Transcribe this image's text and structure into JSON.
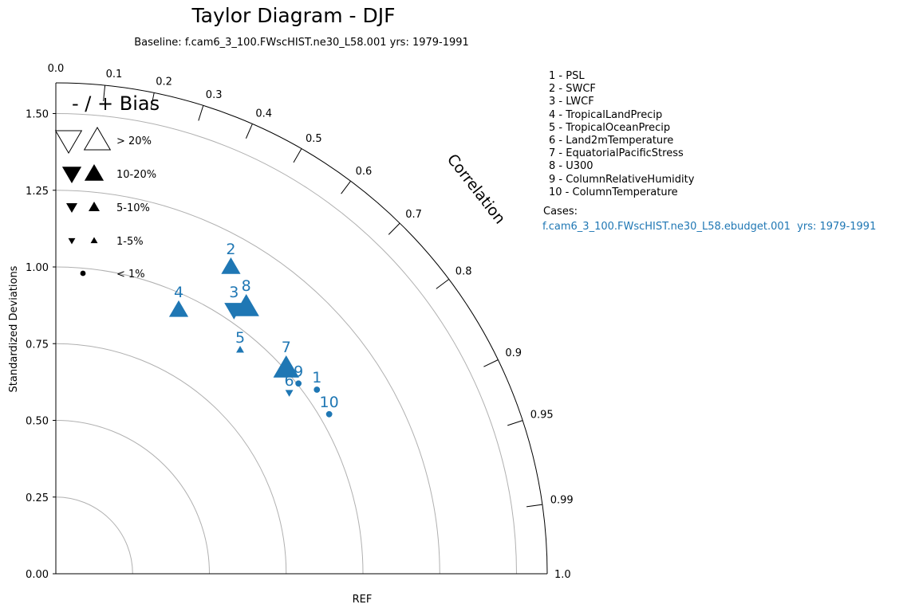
{
  "title": "Taylor Diagram - DJF",
  "subtitle": "Baseline: f.cam6_3_100.FWscHIST.ne30_L58.001  yrs: 1979-1991",
  "chart_data": {
    "type": "scatter",
    "diagram": "taylor",
    "title": "Taylor Diagram - DJF",
    "ylabel": "Standardized Deviations",
    "xlabel": "REF",
    "arc_label": "Correlation",
    "ylim": [
      0,
      1.6
    ],
    "yticks": [
      "0.00",
      "0.25",
      "0.50",
      "0.75",
      "1.00",
      "1.25",
      "1.50"
    ],
    "correlation_ticks": [
      {
        "value": 0.0,
        "label": "0.0"
      },
      {
        "value": 0.1,
        "label": "0.1"
      },
      {
        "value": 0.2,
        "label": "0.2"
      },
      {
        "value": 0.3,
        "label": "0.3"
      },
      {
        "value": 0.4,
        "label": "0.4"
      },
      {
        "value": 0.5,
        "label": "0.5"
      },
      {
        "value": 0.6,
        "label": "0.6"
      },
      {
        "value": 0.7,
        "label": "0.7"
      },
      {
        "value": 0.8,
        "label": "0.8"
      },
      {
        "value": 0.9,
        "label": "0.9"
      },
      {
        "value": 0.95,
        "label": "0.95"
      },
      {
        "value": 0.99,
        "label": "0.99"
      },
      {
        "value": 1.0,
        "label": "1.0"
      }
    ],
    "std_arcs": [
      0.25,
      0.5,
      0.75,
      1.0,
      1.25,
      1.5
    ],
    "series": [
      {
        "case": "f.cam6_3_100.FWscHIST.ne30_L58.ebudget.001  yrs: 1979-1991",
        "color": "#1f77b4",
        "points": [
          {
            "id": "1",
            "x": 0.85,
            "y": 0.6,
            "bias_class": "< 1%",
            "bias_sign": "none"
          },
          {
            "id": "2",
            "x": 0.57,
            "y": 1.0,
            "bias_class": "10-20%",
            "bias_sign": "+"
          },
          {
            "id": "3",
            "x": 0.58,
            "y": 0.86,
            "bias_class": "10-20%",
            "bias_sign": "-"
          },
          {
            "id": "4",
            "x": 0.4,
            "y": 0.86,
            "bias_class": "10-20%",
            "bias_sign": "+"
          },
          {
            "id": "5",
            "x": 0.6,
            "y": 0.73,
            "bias_class": "1-5%",
            "bias_sign": "+"
          },
          {
            "id": "6",
            "x": 0.76,
            "y": 0.59,
            "bias_class": "1-5%",
            "bias_sign": "-"
          },
          {
            "id": "7",
            "x": 0.75,
            "y": 0.67,
            "bias_class": "> 20%",
            "bias_sign": "+"
          },
          {
            "id": "8",
            "x": 0.62,
            "y": 0.87,
            "bias_class": "> 20%",
            "bias_sign": "+"
          },
          {
            "id": "9",
            "x": 0.79,
            "y": 0.62,
            "bias_class": "< 1%",
            "bias_sign": "none"
          },
          {
            "id": "10",
            "x": 0.89,
            "y": 0.52,
            "bias_class": "< 1%",
            "bias_sign": "none"
          }
        ]
      }
    ],
    "bias_legend": {
      "title": "- / + Bias",
      "entries": [
        {
          "label": "> 20%",
          "style": "open-large"
        },
        {
          "label": "10-20%",
          "style": "filled-large"
        },
        {
          "label": "5-10%",
          "style": "filled-medium"
        },
        {
          "label": "1-5%",
          "style": "filled-small"
        },
        {
          "label": "< 1%",
          "style": "dot"
        }
      ]
    }
  },
  "variables": [
    "1 - PSL",
    "2 - SWCF",
    "3 - LWCF",
    "4 - TropicalLandPrecip",
    "5 - TropicalOceanPrecip",
    "6 - Land2mTemperature",
    "7 - EquatorialPacificStress",
    "8 - U300",
    "9 - ColumnRelativeHumidity",
    "10 - ColumnTemperature"
  ],
  "cases": {
    "label": "Cases:",
    "items": [
      "f.cam6_3_100.FWscHIST.ne30_L58.ebudget.001  yrs: 1979-1991"
    ]
  },
  "colors": {
    "case": "#1f77b4",
    "arc": "#b0b0b0",
    "axis": "#000000"
  }
}
